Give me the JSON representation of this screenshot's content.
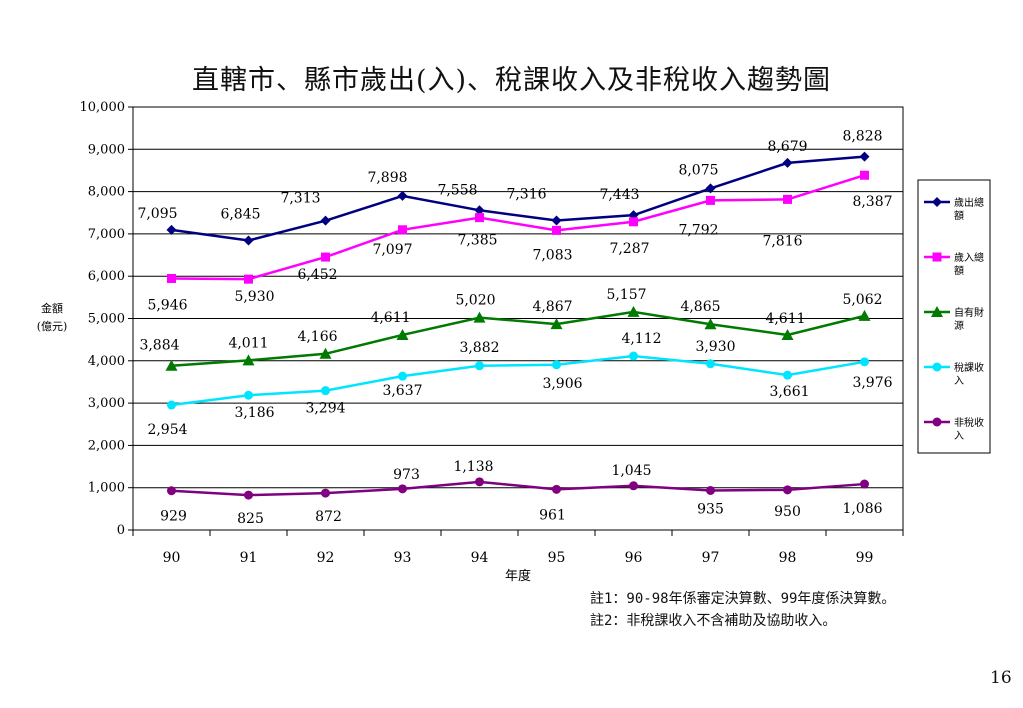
{
  "title": "直轄市、縣市歲出(入)、稅課收入及非稅收入趨勢圖",
  "notes": [
    "註1：90-98年係審定決算數、99年度係決算數。",
    "註2：非稅課收入不含補助及協助收入。"
  ],
  "page_number": "16",
  "chart_data": {
    "type": "line",
    "title": "直轄市、縣市歲出(入)、稅課收入及非稅收入趨勢圖",
    "xlabel": "年度",
    "ylabel_lines": [
      "金額",
      "(億元)"
    ],
    "x": [
      "90",
      "91",
      "92",
      "93",
      "94",
      "95",
      "96",
      "97",
      "98",
      "99"
    ],
    "ylim": [
      0,
      10000
    ],
    "yticks": [
      "0",
      "1,000",
      "2,000",
      "3,000",
      "4,000",
      "5,000",
      "6,000",
      "7,000",
      "8,000",
      "9,000",
      "10,000"
    ],
    "grid": true,
    "legend_position": "right",
    "series": [
      {
        "name": "歲出總額",
        "legend_lines": [
          "歲出總",
          "額"
        ],
        "color": "#000080",
        "marker": "diamond",
        "values": [
          7095,
          6845,
          7313,
          7898,
          7558,
          7316,
          7443,
          8075,
          8679,
          8828
        ],
        "labels": [
          "7,095",
          "6,845",
          "7,313",
          "7,898",
          "7,558",
          "7,316",
          "7,443",
          "8,075",
          "8,679",
          "8,828"
        ]
      },
      {
        "name": "歲入總額",
        "legend_lines": [
          "歲入總",
          "額"
        ],
        "color": "#ff00ff",
        "marker": "square",
        "values": [
          5946,
          5930,
          6452,
          7097,
          7385,
          7083,
          7287,
          7792,
          7816,
          8387
        ],
        "labels": [
          "5,946",
          "5,930",
          "6,452",
          "7,097",
          "7,385",
          "7,083",
          "7,287",
          "7,792",
          "7,816",
          "8,387"
        ]
      },
      {
        "name": "自有財源",
        "legend_lines": [
          "自有財",
          "源"
        ],
        "color": "#007a00",
        "marker": "triangle",
        "values": [
          3884,
          4011,
          4166,
          4611,
          5020,
          4867,
          5157,
          4865,
          4611,
          5062
        ],
        "labels": [
          "3,884",
          "4,011",
          "4,166",
          "4,611",
          "5,020",
          "4,867",
          "5,157",
          "4,865",
          "4,611",
          "5,062"
        ]
      },
      {
        "name": "稅課收入",
        "legend_lines": [
          "稅課收",
          "入"
        ],
        "color": "#00e5ff",
        "marker": "circle",
        "values": [
          2954,
          3186,
          3294,
          3637,
          3882,
          3906,
          4112,
          3930,
          3661,
          3976
        ],
        "labels": [
          "2,954",
          "3,186",
          "3,294",
          "3,637",
          "3,882",
          "3,906",
          "4,112",
          "3,930",
          "3,661",
          "3,976"
        ]
      },
      {
        "name": "非稅收入",
        "legend_lines": [
          "非稅收",
          "入"
        ],
        "color": "#800080",
        "marker": "circle",
        "values": [
          929,
          825,
          872,
          973,
          1138,
          961,
          1045,
          935,
          950,
          1086
        ],
        "labels": [
          "929",
          "825",
          "872",
          "973",
          "1,138",
          "961",
          "1,045",
          "935",
          "950",
          "1,086"
        ]
      }
    ]
  }
}
